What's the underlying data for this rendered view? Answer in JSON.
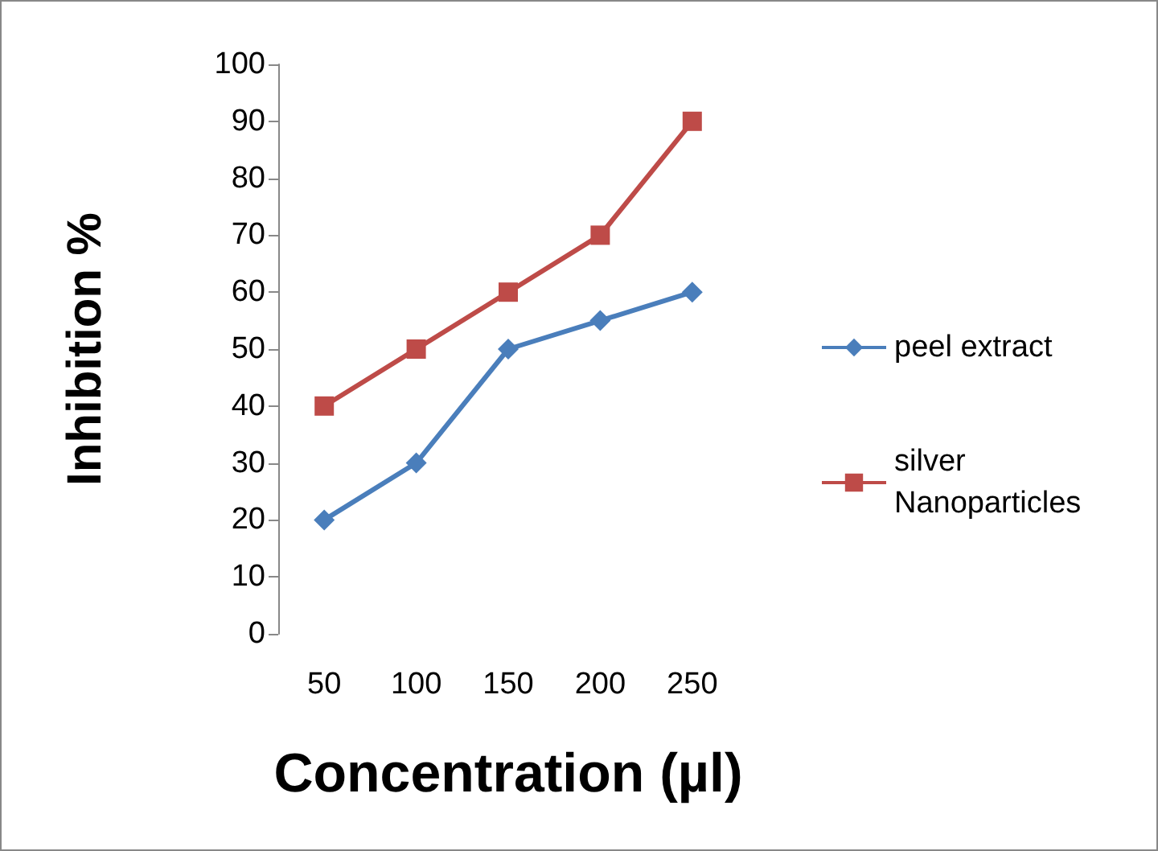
{
  "chart_data": {
    "type": "line",
    "xlabel": "Concentration (µl)",
    "ylabel": "Inhibition %",
    "categories": [
      "50",
      "100",
      "150",
      "200",
      "250"
    ],
    "series": [
      {
        "name": "peel extract",
        "color": "#4a7ebb",
        "marker": "diamond",
        "values": [
          20,
          30,
          50,
          55,
          60
        ]
      },
      {
        "name": "silver Nanoparticles",
        "color": "#be4b48",
        "marker": "square",
        "values": [
          40,
          50,
          60,
          70,
          90
        ]
      }
    ],
    "ylim": [
      0,
      100
    ],
    "yticks": [
      0,
      10,
      20,
      30,
      40,
      50,
      60,
      70,
      80,
      90,
      100
    ],
    "grid": false,
    "legend": "right",
    "line_style": "solid"
  }
}
